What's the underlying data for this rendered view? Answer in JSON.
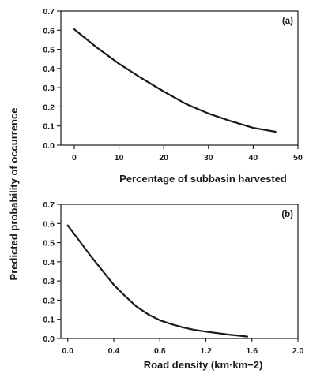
{
  "shared_ylabel": "Predicted probability of occurrence",
  "chart_data": [
    {
      "type": "line",
      "panel_label": "(a)",
      "title": "",
      "xlabel": "Percentage of subbasin harvested",
      "ylabel": "Predicted probability of occurrence",
      "xlim": [
        -3,
        50
      ],
      "ylim": [
        0,
        0.7
      ],
      "xticks": [
        0,
        10,
        20,
        30,
        40,
        50
      ],
      "xtick_labels": [
        "0",
        "10",
        "20",
        "30",
        "40",
        "50"
      ],
      "yticks": [
        0.0,
        0.1,
        0.2,
        0.3,
        0.4,
        0.5,
        0.6,
        0.7
      ],
      "ytick_labels": [
        "0.0",
        "0.1",
        "0.2",
        "0.3",
        "0.4",
        "0.5",
        "0.6",
        "0.7"
      ],
      "grid": false,
      "series": [
        {
          "x": [
            0,
            5,
            10,
            15,
            20,
            25,
            30,
            35,
            40,
            45
          ],
          "y": [
            0.605,
            0.51,
            0.425,
            0.35,
            0.28,
            0.215,
            0.165,
            0.125,
            0.09,
            0.07
          ]
        }
      ]
    },
    {
      "type": "line",
      "panel_label": "(b)",
      "title": "",
      "xlabel": "Road density (km·km−2)",
      "ylabel": "Predicted probability of occurrence",
      "xlim": [
        -0.06,
        2.0
      ],
      "ylim": [
        0,
        0.7
      ],
      "xticks": [
        0.0,
        0.4,
        0.8,
        1.2,
        1.6,
        2.0
      ],
      "xtick_labels": [
        "0.0",
        "0.4",
        "0.8",
        "1.2",
        "1.6",
        "2.0"
      ],
      "yticks": [
        0.0,
        0.1,
        0.2,
        0.3,
        0.4,
        0.5,
        0.6,
        0.7
      ],
      "ytick_labels": [
        "0.0",
        "0.1",
        "0.2",
        "0.3",
        "0.4",
        "0.5",
        "0.6",
        "0.7"
      ],
      "grid": false,
      "series": [
        {
          "x": [
            0.0,
            0.1,
            0.2,
            0.3,
            0.4,
            0.5,
            0.6,
            0.7,
            0.8,
            0.9,
            1.0,
            1.1,
            1.2,
            1.3,
            1.4,
            1.5,
            1.56
          ],
          "y": [
            0.59,
            0.51,
            0.43,
            0.355,
            0.28,
            0.22,
            0.165,
            0.125,
            0.095,
            0.075,
            0.058,
            0.045,
            0.036,
            0.028,
            0.02,
            0.014,
            0.01
          ]
        }
      ]
    }
  ]
}
